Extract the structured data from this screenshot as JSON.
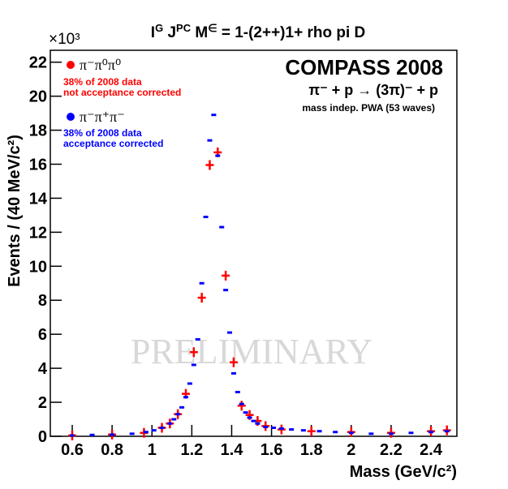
{
  "chart_data": {
    "type": "scatter",
    "title": [
      {
        "text": "I"
      },
      {
        "text": "G",
        "sup": true
      },
      {
        "text": " J"
      },
      {
        "text": "PC",
        "sup": true
      },
      {
        "text": " M"
      },
      {
        "text": "∈",
        "sup": true
      },
      {
        "text": " = 1-(2++)1+ rho pi D"
      }
    ],
    "x_label": "Mass (GeV/c²)",
    "y_label": "Events / (40 MeV/c²)",
    "y_multiplier": "×10³",
    "annotations": [
      "COMPASS 2008",
      "π⁻ + p →  (3π)⁻ + p",
      "mass indep. PWA (53 waves)"
    ],
    "watermark": "PRELIMINARY",
    "xlim": [
      0.49,
      2.53
    ],
    "ylim": [
      0,
      22.7
    ],
    "xticks": [
      0.6,
      0.8,
      1,
      1.2,
      1.4,
      1.6,
      1.8,
      2,
      2.2,
      2.4
    ],
    "yticks": [
      0,
      2,
      4,
      6,
      8,
      10,
      12,
      14,
      16,
      18,
      20,
      22
    ],
    "series": [
      {
        "name": "π⁻π⁰π⁰",
        "color": "#ff0000",
        "marker": "cross",
        "note": [
          "38% of 2008 data",
          "not acceptance corrected"
        ],
        "x": [
          0.6,
          0.8,
          0.96,
          1.05,
          1.09,
          1.13,
          1.17,
          1.21,
          1.25,
          1.29,
          1.33,
          1.37,
          1.41,
          1.45,
          1.49,
          1.53,
          1.57,
          1.65,
          1.8,
          2.0,
          2.2,
          2.4,
          2.48
        ],
        "values": [
          0.05,
          0.1,
          0.2,
          0.5,
          0.75,
          1.3,
          2.5,
          4.95,
          8.15,
          15.95,
          16.7,
          9.45,
          4.35,
          1.8,
          1.25,
          0.9,
          0.6,
          0.4,
          0.3,
          0.25,
          0.2,
          0.3,
          0.35
        ]
      },
      {
        "name": "π⁻π⁺π⁻",
        "color": "#0000ff",
        "marker": "dash",
        "note": [
          "38% of 2008 data",
          "acceptance corrected"
        ],
        "x": [
          0.6,
          0.7,
          0.8,
          0.9,
          0.97,
          1.01,
          1.05,
          1.09,
          1.11,
          1.13,
          1.15,
          1.17,
          1.19,
          1.21,
          1.23,
          1.25,
          1.27,
          1.29,
          1.31,
          1.33,
          1.35,
          1.37,
          1.39,
          1.41,
          1.43,
          1.45,
          1.47,
          1.49,
          1.51,
          1.53,
          1.57,
          1.61,
          1.65,
          1.7,
          1.76,
          1.84,
          1.92,
          2.0,
          2.1,
          2.2,
          2.3,
          2.4,
          2.48
        ],
        "values": [
          0.05,
          0.08,
          0.1,
          0.15,
          0.25,
          0.35,
          0.5,
          0.75,
          1.0,
          1.3,
          1.7,
          2.3,
          3.1,
          4.2,
          5.7,
          9.0,
          12.9,
          17.4,
          18.9,
          16.5,
          12.3,
          8.6,
          6.1,
          3.7,
          2.6,
          1.9,
          1.4,
          1.1,
          0.9,
          0.75,
          0.55,
          0.5,
          0.45,
          0.4,
          0.35,
          0.3,
          0.25,
          0.2,
          0.15,
          0.15,
          0.2,
          0.25,
          0.3
        ]
      }
    ]
  }
}
